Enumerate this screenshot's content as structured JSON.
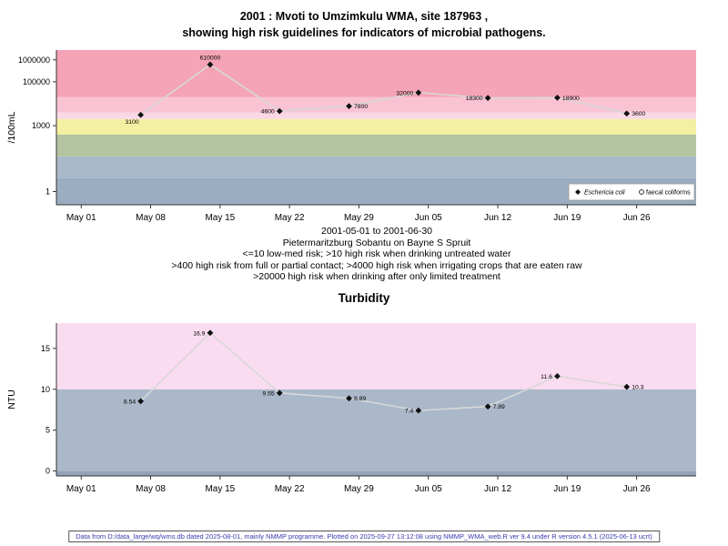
{
  "page": {
    "footer": {
      "text": "Data from D:/data_large/wq/wms.db dated 2025-08-01, mainly NMMP programme. Plotted on 2025-09-27 13:12:08 using NMMP_WMA_web.R ver 9.4 under R version 4.5.1 (2025-06-13 ucrt)",
      "color": "#3a3aae"
    }
  },
  "chart_data": [
    {
      "type": "line",
      "title_lines": [
        "2001 : Mvoti to Umzimkulu WMA, site 187963 ,",
        "showing high risk guidelines for indicators of microbial pathogens."
      ],
      "ylabel": "/100mL",
      "yscale": "log10",
      "ylim": [
        0.25,
        2800000
      ],
      "yticks": [
        {
          "value": 1,
          "label": "1"
        },
        {
          "value": 1000,
          "label": "1000"
        },
        {
          "value": 100000,
          "label": "100000"
        },
        {
          "value": 1000000,
          "label": "1000000"
        }
      ],
      "xlim": [
        -2.5,
        62
      ],
      "xticks": [
        {
          "day": 0,
          "label": "May 01"
        },
        {
          "day": 7,
          "label": "May 08"
        },
        {
          "day": 14,
          "label": "May 15"
        },
        {
          "day": 21,
          "label": "May 22"
        },
        {
          "day": 28,
          "label": "May 29"
        },
        {
          "day": 35,
          "label": "Jun 05"
        },
        {
          "day": 42,
          "label": "Jun 12"
        },
        {
          "day": 49,
          "label": "Jun 19"
        },
        {
          "day": 56,
          "label": "Jun 26"
        }
      ],
      "grid": false,
      "bands": [
        {
          "from": 0.25,
          "to": 4,
          "color": "#9badc0"
        },
        {
          "from": 4,
          "to": 40,
          "color": "#a9b9c9"
        },
        {
          "from": 40,
          "to": 400,
          "color": "#b4c4a0"
        },
        {
          "from": 400,
          "to": 2000,
          "color": "#f4f0a2"
        },
        {
          "from": 2000,
          "to": 4000,
          "color": "#fbd8e6"
        },
        {
          "from": 4000,
          "to": 20000,
          "color": "#f9c3d4"
        },
        {
          "from": 20000,
          "to": 2800000,
          "color": "#f5a3b6"
        }
      ],
      "series": [
        {
          "name": "Eschericia coli",
          "marker": "diamond-filled",
          "marker_color": "#111111",
          "line_color": "#d8d8d8",
          "points": [
            {
              "day": 6,
              "value": 3100,
              "label": "3100",
              "label_side": "below-left"
            },
            {
              "day": 13,
              "value": 610000,
              "label": "610000",
              "label_side": "above"
            },
            {
              "day": 20,
              "value": 4600,
              "label": "4600",
              "label_side": "left"
            },
            {
              "day": 27,
              "value": 7800,
              "label": "7800",
              "label_side": "right"
            },
            {
              "day": 34,
              "value": 32000,
              "label": "32000",
              "label_side": "left"
            },
            {
              "day": 41,
              "value": 18300,
              "label": "18300",
              "label_side": "left"
            },
            {
              "day": 48,
              "value": 18900,
              "label": "18900",
              "label_side": "right"
            },
            {
              "day": 55,
              "value": 3600,
              "label": "3600",
              "label_side": "right"
            }
          ]
        },
        {
          "name": "faecal coliforms",
          "marker": "circle-open",
          "points": []
        }
      ],
      "legend": {
        "position": "bottom-right",
        "entries": [
          {
            "marker": "diamond-filled",
            "label": "Eschericia coli",
            "italic": true
          },
          {
            "marker": "circle-open",
            "label": "faecal coliforms",
            "italic": false
          }
        ]
      },
      "captions": [
        "2001-05-01 to 2001-06-30",
        "Pietermaritzburg Sobantu on Bayne S Spruit",
        "<=10 low-med risk; >10 high risk when drinking untreated water",
        ">400 high risk from full or partial contact; >4000 high risk when irrigating crops that are eaten raw",
        ">20000 high risk when drinking after only limited treatment"
      ]
    },
    {
      "type": "line",
      "title": "Turbidity",
      "ylabel": "NTU",
      "yscale": "linear",
      "ylim": [
        -0.6,
        18.1
      ],
      "yticks": [
        {
          "value": 0,
          "label": "0"
        },
        {
          "value": 5,
          "label": "5"
        },
        {
          "value": 10,
          "label": "10"
        },
        {
          "value": 15,
          "label": "15"
        }
      ],
      "xlim": [
        -2.5,
        62
      ],
      "xticks": [
        {
          "day": 0,
          "label": "May 01"
        },
        {
          "day": 7,
          "label": "May 08"
        },
        {
          "day": 14,
          "label": "May 15"
        },
        {
          "day": 21,
          "label": "May 22"
        },
        {
          "day": 28,
          "label": "May 29"
        },
        {
          "day": 35,
          "label": "Jun 05"
        },
        {
          "day": 42,
          "label": "Jun 12"
        },
        {
          "day": 49,
          "label": "Jun 19"
        },
        {
          "day": 56,
          "label": "Jun 26"
        }
      ],
      "grid": false,
      "bands": [
        {
          "from": -0.6,
          "to": 0,
          "color": "#93a4b9"
        },
        {
          "from": 0,
          "to": 10,
          "color": "#aab8ca"
        },
        {
          "from": 10,
          "to": 18.1,
          "color": "#fadcf0"
        }
      ],
      "series": [
        {
          "name": "Turbidity",
          "marker": "diamond-filled",
          "marker_color": "#111111",
          "line_color": "#d8d8d8",
          "points": [
            {
              "day": 6,
              "value": 8.54,
              "label": "8.54",
              "label_side": "left"
            },
            {
              "day": 13,
              "value": 16.9,
              "label": "16.9",
              "label_side": "left"
            },
            {
              "day": 20,
              "value": 9.55,
              "label": "9.55",
              "label_side": "left"
            },
            {
              "day": 27,
              "value": 8.89,
              "label": "8.89",
              "label_side": "right"
            },
            {
              "day": 34,
              "value": 7.4,
              "label": "7.4",
              "label_side": "left"
            },
            {
              "day": 41,
              "value": 7.89,
              "label": "7.89",
              "label_side": "right"
            },
            {
              "day": 48,
              "value": 11.6,
              "label": "11.6",
              "label_side": "left"
            },
            {
              "day": 55,
              "value": 10.3,
              "label": "10.3",
              "label_side": "right"
            }
          ]
        }
      ]
    }
  ]
}
